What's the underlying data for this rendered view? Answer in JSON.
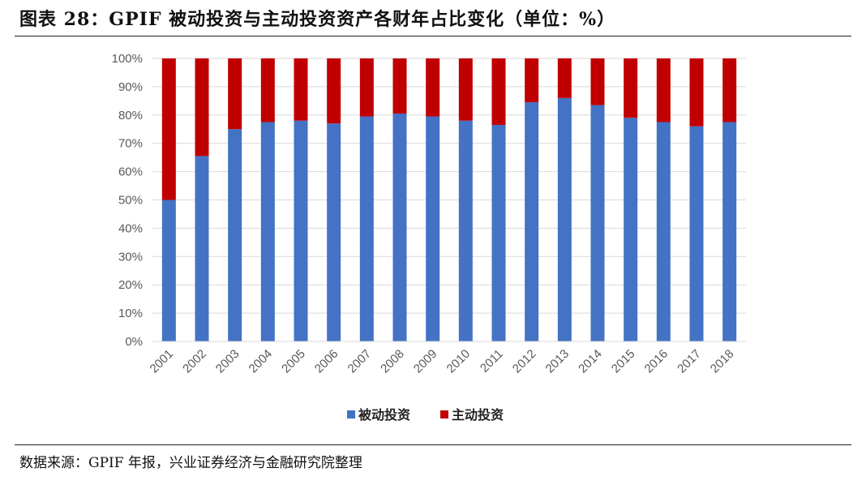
{
  "title": "图表 28：GPIF 被动投资与主动投资资产各财年占比变化（单位：%）",
  "source": "数据来源：GPIF 年报，兴业证券经济与金融研究院整理",
  "chart_data": {
    "type": "bar",
    "stacked": true,
    "categories": [
      "2001",
      "2002",
      "2003",
      "2004",
      "2005",
      "2006",
      "2007",
      "2008",
      "2009",
      "2010",
      "2011",
      "2012",
      "2013",
      "2014",
      "2015",
      "2016",
      "2017",
      "2018"
    ],
    "series": [
      {
        "name": "被动投资",
        "color": "#4472C4",
        "values": [
          50,
          65.5,
          75,
          77.5,
          78,
          77,
          79.5,
          80.5,
          79.5,
          78,
          76.5,
          84.5,
          86,
          83.5,
          79,
          77.5,
          76,
          77.5
        ]
      },
      {
        "name": "主动投资",
        "color": "#C00000",
        "values": [
          50,
          34.5,
          25,
          22.5,
          22,
          23,
          20.5,
          19.5,
          20.5,
          22,
          23.5,
          15.5,
          14,
          16.5,
          21,
          22.5,
          24,
          22.5
        ]
      }
    ],
    "yticks": [
      "0%",
      "10%",
      "20%",
      "30%",
      "40%",
      "50%",
      "60%",
      "70%",
      "80%",
      "90%",
      "100%"
    ],
    "ylim": [
      0,
      100
    ],
    "grid": true,
    "legend": "bottom"
  }
}
